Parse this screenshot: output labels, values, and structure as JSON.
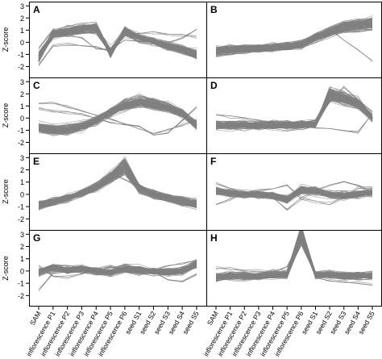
{
  "chart_data": {
    "type": "line",
    "ylabel": "Z-score",
    "x_categories": [
      "SAM",
      "inflorescence P1",
      "inflorescence P2",
      "inflorescence P3",
      "inflorescence P4",
      "inflorescence P5",
      "inflorescence P6",
      "seed S1",
      "seed S2",
      "seed S3",
      "seed S4",
      "seed S5"
    ],
    "y_ticks": [
      {
        "label": "3",
        "value": 3
      },
      {
        "label": "2",
        "value": 2
      },
      {
        "label": "1",
        "value": 1
      },
      {
        "label": "0",
        "value": 0
      },
      {
        "label": "-1",
        "value": -1
      },
      {
        "label": "-2",
        "value": -2
      }
    ],
    "line_color": "#808080",
    "axis_color": "#000000",
    "panels": [
      {
        "label": "A",
        "mean_profile": [
          -1.3,
          0.7,
          0.9,
          1.1,
          1.2,
          -0.9,
          0.9,
          0.4,
          0.1,
          -0.3,
          -0.6,
          -1.0
        ],
        "outlier_profiles": [
          [
            -1.9,
            -0.3,
            -0.2,
            -0.3,
            -0.4,
            -0.7,
            0.5,
            0.7,
            0.8,
            0.7,
            0.6,
            0.5
          ],
          [
            -0.5,
            1.0,
            0.6,
            0.4,
            -0.5,
            -0.6,
            0.2,
            0.1,
            0.1,
            0.0,
            0.4,
            1.0
          ]
        ]
      },
      {
        "label": "B",
        "mean_profile": [
          -0.7,
          -0.6,
          -0.6,
          -0.5,
          -0.4,
          -0.3,
          -0.2,
          0.4,
          0.9,
          1.3,
          1.4,
          1.6
        ],
        "outlier_profiles": [
          [
            -0.5,
            -0.4,
            -0.3,
            -0.3,
            -0.2,
            0.0,
            0.1,
            0.6,
            1.1,
            0.2,
            -0.6,
            -1.6
          ],
          [
            -1.1,
            -0.9,
            -0.8,
            -0.7,
            -0.6,
            -0.5,
            -0.4,
            0.0,
            0.5,
            1.5,
            1.8,
            1.2
          ]
        ]
      },
      {
        "label": "C",
        "mean_profile": [
          -0.8,
          -1.0,
          -1.0,
          -0.7,
          -0.2,
          0.5,
          1.1,
          1.4,
          1.2,
          0.9,
          0.4,
          -0.6
        ],
        "outlier_profiles": [
          [
            1.2,
            1.2,
            0.9,
            0.6,
            0.2,
            -0.1,
            -0.5,
            -0.8,
            -1.2,
            -1.0,
            -0.6,
            -0.2
          ],
          [
            0.8,
            0.6,
            0.5,
            0.3,
            0.0,
            -0.3,
            -0.5,
            -0.7,
            -1.4,
            -1.2,
            -0.2,
            0.9
          ]
        ]
      },
      {
        "label": "D",
        "mean_profile": [
          -0.6,
          -0.6,
          -0.6,
          -0.6,
          -0.6,
          -0.6,
          -0.6,
          -0.5,
          2.0,
          1.7,
          1.2,
          0.0
        ],
        "outlier_profiles": [
          [
            0.3,
            0.1,
            0.0,
            -0.2,
            -0.4,
            -0.5,
            -0.6,
            -0.8,
            -0.8,
            -1.0,
            -1.2,
            0.4
          ],
          [
            -0.8,
            -0.7,
            -0.6,
            -0.5,
            -0.5,
            -0.4,
            -0.4,
            -0.3,
            1.2,
            2.5,
            1.5,
            0.5
          ]
        ]
      },
      {
        "label": "E",
        "mean_profile": [
          -0.9,
          -0.6,
          -0.3,
          0.1,
          0.6,
          1.4,
          2.4,
          0.5,
          0.0,
          -0.3,
          -0.6,
          -0.8
        ],
        "outlier_profiles": [
          [
            -1.0,
            -0.8,
            -0.3,
            0.3,
            0.9,
            1.8,
            1.2,
            0.6,
            0.3,
            -0.1,
            -0.2,
            -0.6
          ]
        ]
      },
      {
        "label": "F",
        "mean_profile": [
          0.3,
          0.1,
          0.0,
          0.0,
          -0.1,
          -0.4,
          0.4,
          0.3,
          0.0,
          -0.1,
          0.0,
          0.2
        ],
        "outlier_profiles": [
          [
            0.9,
            0.5,
            0.2,
            0.0,
            -0.2,
            -1.2,
            -0.4,
            0.3,
            0.8,
            1.0,
            0.7,
            0.2
          ],
          [
            -0.9,
            -0.4,
            0.1,
            0.3,
            0.4,
            0.7,
            -0.3,
            -0.6,
            -0.8,
            -0.2,
            0.5,
            0.6
          ]
        ]
      },
      {
        "label": "G",
        "mean_profile": [
          -0.1,
          0.3,
          0.1,
          0.2,
          0.0,
          -0.1,
          0.2,
          0.1,
          0.0,
          -0.1,
          0.0,
          0.6
        ],
        "outlier_profiles": [
          [
            -1.6,
            -0.2,
            0.0,
            0.1,
            0.0,
            0.3,
            0.0,
            -0.3,
            0.1,
            0.4,
            0.6,
            0.9
          ],
          [
            0.4,
            -0.4,
            -0.5,
            -0.3,
            0.2,
            0.4,
            0.1,
            0.3,
            0.0,
            -0.7,
            -0.8,
            -0.2
          ]
        ]
      },
      {
        "label": "H",
        "mean_profile": [
          -0.5,
          -0.4,
          -0.4,
          -0.4,
          -0.3,
          -0.3,
          3.0,
          -0.3,
          -0.3,
          -0.4,
          -0.4,
          -0.4
        ],
        "outlier_profiles": [
          [
            0.3,
            0.2,
            0.1,
            0.0,
            -0.1,
            0.4,
            2.6,
            -0.6,
            -0.8,
            -0.9,
            -1.0,
            -1.1
          ]
        ]
      }
    ]
  }
}
